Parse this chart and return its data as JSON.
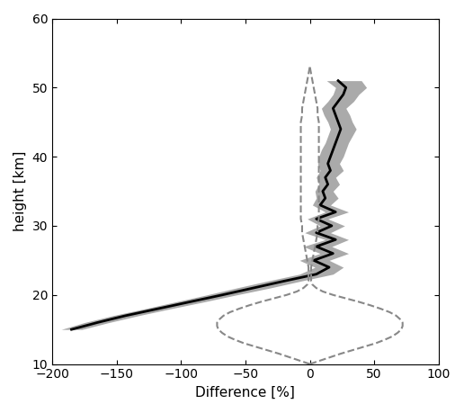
{
  "xlim": [
    -200,
    100
  ],
  "ylim": [
    10,
    60
  ],
  "xlabel": "Difference [%]",
  "ylabel": "height [km]",
  "xticks": [
    -200,
    -150,
    -100,
    -50,
    0,
    50,
    100
  ],
  "yticks": [
    10,
    20,
    30,
    40,
    50,
    60
  ],
  "heights": [
    15.0,
    16.0,
    17.0,
    18.0,
    19.0,
    20.0,
    21.0,
    22.0,
    23.0,
    24.0,
    25.0,
    26.0,
    27.0,
    28.0,
    29.0,
    30.0,
    31.0,
    32.0,
    33.0,
    34.0,
    35.0,
    36.0,
    37.0,
    38.0,
    39.0,
    40.0,
    41.0,
    42.0,
    43.0,
    44.0,
    45.0,
    46.0,
    47.0,
    48.0,
    49.0,
    50.0,
    51.0
  ],
  "mean_diff": [
    -185,
    -165,
    -143,
    -118,
    -93,
    -68,
    -44,
    -20,
    5,
    15,
    3,
    18,
    5,
    20,
    5,
    17,
    5,
    20,
    8,
    12,
    10,
    14,
    12,
    16,
    14,
    16,
    18,
    20,
    22,
    24,
    22,
    20,
    18,
    22,
    26,
    28,
    22
  ],
  "std_low": [
    -193,
    -175,
    -153,
    -128,
    -104,
    -80,
    -57,
    -33,
    -8,
    4,
    -8,
    8,
    -5,
    12,
    -4,
    8,
    -2,
    12,
    2,
    5,
    4,
    7,
    5,
    8,
    6,
    7,
    9,
    12,
    14,
    16,
    14,
    11,
    9,
    14,
    18,
    20,
    13
  ],
  "std_high": [
    -177,
    -156,
    -133,
    -108,
    -82,
    -57,
    -31,
    -7,
    18,
    26,
    15,
    30,
    17,
    30,
    16,
    27,
    14,
    30,
    16,
    22,
    18,
    23,
    20,
    26,
    23,
    26,
    28,
    30,
    33,
    36,
    33,
    31,
    28,
    34,
    38,
    44,
    40
  ],
  "dashed_heights": [
    10.0,
    10.5,
    11.0,
    11.5,
    12.0,
    12.5,
    13.0,
    13.5,
    14.0,
    14.5,
    15.0,
    15.5,
    16.0,
    16.5,
    17.0,
    17.5,
    18.0,
    18.5,
    19.0,
    19.5,
    20.0,
    20.5,
    21.0,
    21.5,
    22.0,
    22.5,
    23.0,
    24.0,
    25.0,
    26.0,
    27.0,
    28.0,
    29.0,
    30.0,
    31.0,
    32.0,
    33.0,
    34.0,
    35.0,
    36.0,
    37.0,
    38.0,
    39.0,
    40.0,
    41.0,
    42.0,
    43.0,
    44.0,
    45.0,
    46.0,
    47.0,
    48.0,
    49.0,
    50.0,
    51.0,
    52.0,
    53.0
  ],
  "dashed_vals": [
    0,
    8,
    16,
    24,
    33,
    42,
    51,
    58,
    64,
    68,
    71,
    72,
    72,
    70,
    67,
    62,
    55,
    47,
    38,
    28,
    18,
    10,
    5,
    2,
    1,
    1,
    1,
    1,
    2,
    3,
    4,
    5,
    6,
    6,
    7,
    7,
    7,
    7,
    7,
    7,
    7,
    7,
    7,
    7,
    7,
    7,
    7,
    7,
    7,
    6,
    6,
    5,
    4,
    3,
    2,
    1,
    0
  ],
  "shade_color": "#aaaaaa",
  "line_color": "#000000",
  "dashed_color": "#888888",
  "bg_color": "#ffffff"
}
